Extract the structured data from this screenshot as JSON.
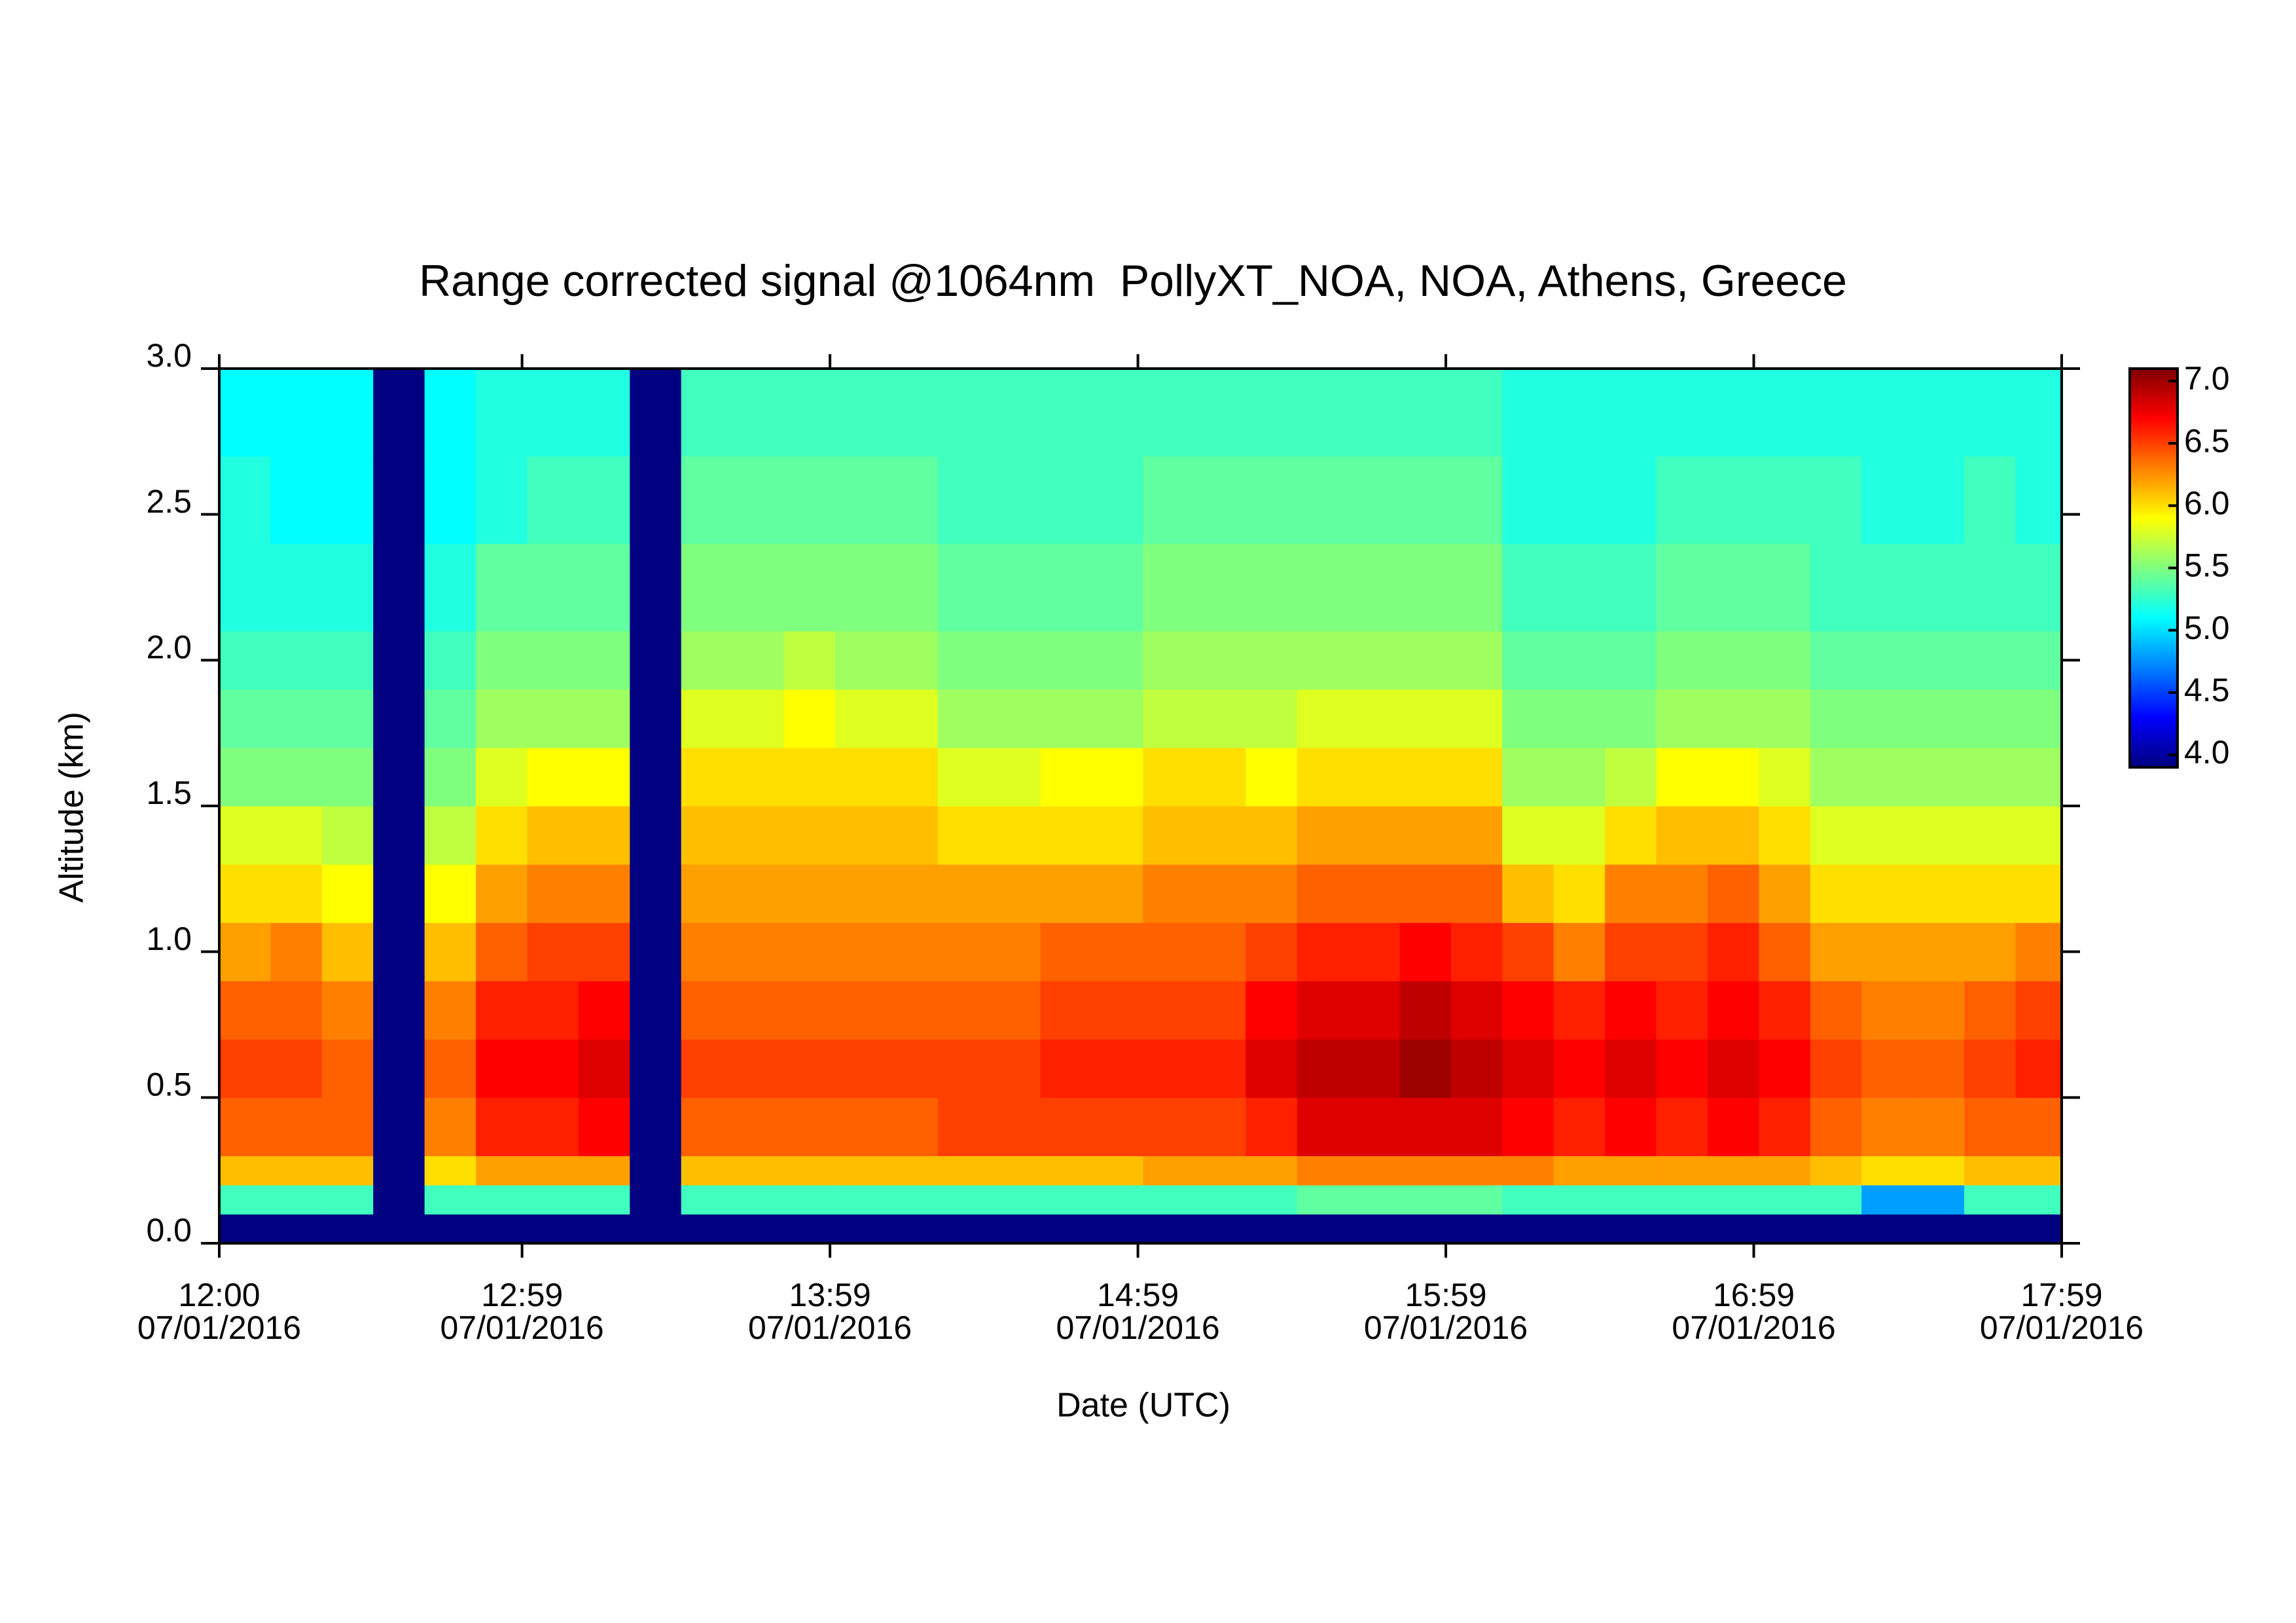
{
  "chart_data": {
    "type": "heatmap",
    "title": "Range corrected signal @1064nm  PollyXT_NOA, NOA, Athens, Greece",
    "xlabel": "Date (UTC)",
    "ylabel": "Altitude (km)",
    "date": "07/01/2016",
    "xlim": [
      "12:00",
      "17:59"
    ],
    "xticks": [
      "12:00",
      "12:59",
      "13:59",
      "14:59",
      "15:59",
      "16:59",
      "17:59"
    ],
    "ylim": [
      0,
      3
    ],
    "yticks": [
      {
        "value": 0,
        "label": "0.0"
      },
      0.5,
      {
        "value": 1,
        "label": "1.0"
      },
      1.5,
      {
        "value": 2,
        "label": "2.0"
      },
      2.5,
      {
        "value": 3,
        "label": "3.0"
      }
    ],
    "colormap": "jet",
    "clim": [
      3.9,
      7.1
    ],
    "cticks": [
      {
        "value": 4,
        "label": "4.0"
      },
      4.5,
      {
        "value": 5,
        "label": "5.0"
      },
      5.5,
      {
        "value": 6,
        "label": "6.0"
      },
      6.5,
      {
        "value": 7,
        "label": "7.0"
      }
    ],
    "xbins": [
      "12:00",
      "12:10",
      "12:20",
      "12:30",
      "12:40",
      "12:50",
      "13:00",
      "13:10",
      "13:20",
      "13:30",
      "13:40",
      "13:50",
      "14:00",
      "14:10",
      "14:20",
      "14:30",
      "14:40",
      "14:50",
      "15:00",
      "15:10",
      "15:20",
      "15:30",
      "15:40",
      "15:50",
      "16:00",
      "16:10",
      "16:20",
      "16:30",
      "16:40",
      "16:50",
      "17:00",
      "17:10",
      "17:20",
      "17:30",
      "17:40",
      "17:50",
      "17:59"
    ],
    "ybins": [
      0,
      0.1,
      0.2,
      0.3,
      0.5,
      0.7,
      0.9,
      1.1,
      1.3,
      1.5,
      1.7,
      1.9,
      2.1,
      2.4,
      2.7,
      3.0
    ],
    "values": [
      [
        3.9,
        5.3,
        6.1,
        6.4,
        6.5,
        6.4,
        6.2,
        6.0,
        5.8,
        5.5,
        5.4,
        5.3,
        5.2,
        5.2,
        5.1
      ],
      [
        3.9,
        5.3,
        6.1,
        6.4,
        6.5,
        6.4,
        6.3,
        6.0,
        5.8,
        5.5,
        5.4,
        5.3,
        5.2,
        5.1,
        5.1
      ],
      [
        3.9,
        5.3,
        6.1,
        6.4,
        6.4,
        6.3,
        6.1,
        5.9,
        5.7,
        5.5,
        5.4,
        5.3,
        5.2,
        5.1,
        5.1
      ],
      [
        3.9,
        3.9,
        3.9,
        3.9,
        3.9,
        3.9,
        3.9,
        3.9,
        3.9,
        3.9,
        3.9,
        3.9,
        3.9,
        3.9,
        3.9
      ],
      [
        3.9,
        5.3,
        6.0,
        6.3,
        6.4,
        6.3,
        6.1,
        5.9,
        5.7,
        5.5,
        5.4,
        5.3,
        5.2,
        5.1,
        5.1
      ],
      [
        3.9,
        5.3,
        6.2,
        6.6,
        6.7,
        6.6,
        6.4,
        6.2,
        6.0,
        5.8,
        5.6,
        5.5,
        5.4,
        5.2,
        5.2
      ],
      [
        3.9,
        5.3,
        6.2,
        6.6,
        6.7,
        6.6,
        6.5,
        6.3,
        6.1,
        5.9,
        5.6,
        5.5,
        5.4,
        5.3,
        5.2
      ],
      [
        3.9,
        5.3,
        6.2,
        6.7,
        6.8,
        6.7,
        6.5,
        6.3,
        6.1,
        5.9,
        5.6,
        5.5,
        5.4,
        5.3,
        5.2
      ],
      [
        3.9,
        3.9,
        3.9,
        3.9,
        3.9,
        3.9,
        3.9,
        3.9,
        3.9,
        3.9,
        3.9,
        3.9,
        3.9,
        3.9,
        3.9
      ],
      [
        3.9,
        5.3,
        6.1,
        6.4,
        6.5,
        6.4,
        6.3,
        6.2,
        6.1,
        6.0,
        5.8,
        5.6,
        5.5,
        5.4,
        5.3
      ],
      [
        3.9,
        5.3,
        6.1,
        6.4,
        6.5,
        6.4,
        6.3,
        6.2,
        6.1,
        6.0,
        5.8,
        5.6,
        5.5,
        5.4,
        5.3
      ],
      [
        3.9,
        5.3,
        6.1,
        6.4,
        6.5,
        6.4,
        6.3,
        6.2,
        6.1,
        6.0,
        5.9,
        5.7,
        5.5,
        5.4,
        5.3
      ],
      [
        3.9,
        5.3,
        6.1,
        6.4,
        6.5,
        6.4,
        6.3,
        6.2,
        6.1,
        6.0,
        5.8,
        5.6,
        5.5,
        5.4,
        5.3
      ],
      [
        3.9,
        5.3,
        6.1,
        6.4,
        6.5,
        6.4,
        6.3,
        6.2,
        6.1,
        6.0,
        5.8,
        5.6,
        5.5,
        5.4,
        5.3
      ],
      [
        3.9,
        5.3,
        6.1,
        6.5,
        6.5,
        6.4,
        6.3,
        6.2,
        6.0,
        5.8,
        5.6,
        5.5,
        5.4,
        5.3,
        5.3
      ],
      [
        3.9,
        5.3,
        6.1,
        6.5,
        6.5,
        6.4,
        6.3,
        6.2,
        6.0,
        5.8,
        5.6,
        5.5,
        5.4,
        5.3,
        5.3
      ],
      [
        3.9,
        5.3,
        6.1,
        6.5,
        6.6,
        6.5,
        6.4,
        6.2,
        6.0,
        5.9,
        5.6,
        5.5,
        5.4,
        5.3,
        5.3
      ],
      [
        3.9,
        5.3,
        6.1,
        6.5,
        6.6,
        6.5,
        6.4,
        6.2,
        6.0,
        5.9,
        5.6,
        5.5,
        5.4,
        5.3,
        5.3
      ],
      [
        3.9,
        5.3,
        6.2,
        6.5,
        6.6,
        6.5,
        6.4,
        6.3,
        6.1,
        6.0,
        5.7,
        5.6,
        5.5,
        5.4,
        5.3
      ],
      [
        3.9,
        5.3,
        6.2,
        6.5,
        6.6,
        6.5,
        6.4,
        6.3,
        6.1,
        6.0,
        5.7,
        5.6,
        5.5,
        5.4,
        5.3
      ],
      [
        3.9,
        5.3,
        6.2,
        6.6,
        6.8,
        6.7,
        6.5,
        6.3,
        6.1,
        5.9,
        5.7,
        5.6,
        5.5,
        5.4,
        5.3
      ],
      [
        3.9,
        5.4,
        6.3,
        6.8,
        6.9,
        6.8,
        6.6,
        6.4,
        6.2,
        6.0,
        5.8,
        5.6,
        5.5,
        5.4,
        5.3
      ],
      [
        3.9,
        5.4,
        6.3,
        6.8,
        6.9,
        6.8,
        6.6,
        6.4,
        6.2,
        6.0,
        5.8,
        5.6,
        5.5,
        5.4,
        5.3
      ],
      [
        3.9,
        5.4,
        6.3,
        6.8,
        7.0,
        6.9,
        6.7,
        6.4,
        6.2,
        6.0,
        5.8,
        5.6,
        5.5,
        5.4,
        5.3
      ],
      [
        3.9,
        5.4,
        6.3,
        6.8,
        6.9,
        6.8,
        6.6,
        6.4,
        6.2,
        6.0,
        5.8,
        5.6,
        5.5,
        5.4,
        5.3
      ],
      [
        3.9,
        5.3,
        6.3,
        6.7,
        6.8,
        6.7,
        6.5,
        6.1,
        5.8,
        5.6,
        5.5,
        5.4,
        5.3,
        5.2,
        5.2
      ],
      [
        3.9,
        5.3,
        6.2,
        6.6,
        6.7,
        6.6,
        6.3,
        6.0,
        5.8,
        5.6,
        5.5,
        5.4,
        5.3,
        5.2,
        5.2
      ],
      [
        3.9,
        5.3,
        6.2,
        6.7,
        6.8,
        6.7,
        6.5,
        6.3,
        6.0,
        5.7,
        5.5,
        5.4,
        5.3,
        5.2,
        5.2
      ],
      [
        3.9,
        5.3,
        6.2,
        6.6,
        6.7,
        6.6,
        6.5,
        6.3,
        6.1,
        5.9,
        5.6,
        5.5,
        5.4,
        5.3,
        5.2
      ],
      [
        3.9,
        5.3,
        6.2,
        6.7,
        6.8,
        6.7,
        6.6,
        6.4,
        6.1,
        5.9,
        5.6,
        5.5,
        5.4,
        5.3,
        5.2
      ],
      [
        3.9,
        5.3,
        6.2,
        6.6,
        6.7,
        6.6,
        6.4,
        6.2,
        6.0,
        5.8,
        5.6,
        5.5,
        5.4,
        5.3,
        5.2
      ],
      [
        3.9,
        5.3,
        6.1,
        6.4,
        6.5,
        6.4,
        6.2,
        6.0,
        5.8,
        5.6,
        5.5,
        5.4,
        5.3,
        5.3,
        5.2
      ],
      [
        3.9,
        4.8,
        6.0,
        6.3,
        6.4,
        6.3,
        6.2,
        6.0,
        5.8,
        5.6,
        5.5,
        5.4,
        5.3,
        5.2,
        5.2
      ],
      [
        3.9,
        4.8,
        6.0,
        6.3,
        6.4,
        6.3,
        6.2,
        6.0,
        5.8,
        5.6,
        5.5,
        5.4,
        5.3,
        5.2,
        5.2
      ],
      [
        3.9,
        5.3,
        6.1,
        6.4,
        6.5,
        6.4,
        6.2,
        6.0,
        5.8,
        5.6,
        5.5,
        5.4,
        5.3,
        5.3,
        5.2
      ],
      [
        3.9,
        5.3,
        6.1,
        6.4,
        6.6,
        6.5,
        6.3,
        6.0,
        5.8,
        5.6,
        5.5,
        5.4,
        5.3,
        5.2,
        5.2
      ]
    ]
  }
}
